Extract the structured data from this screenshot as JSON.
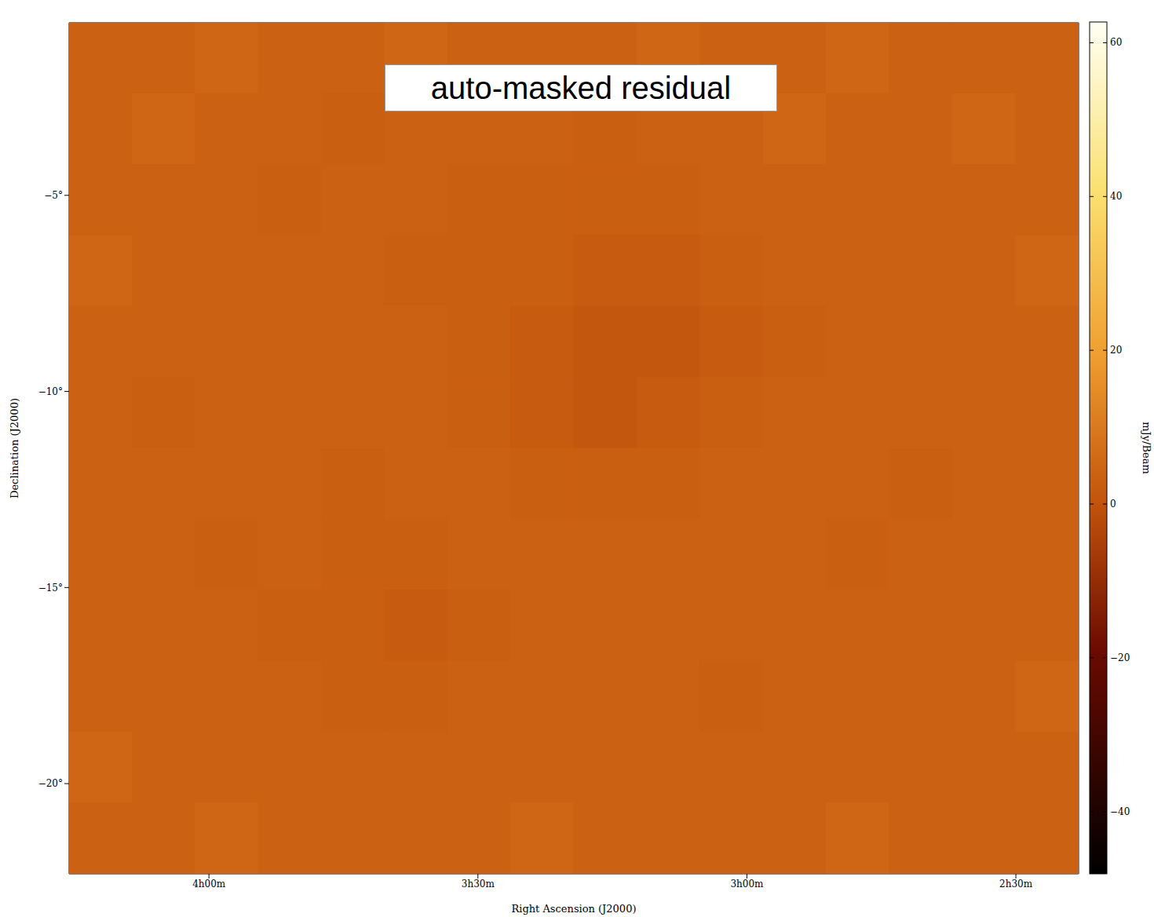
{
  "chart_data": {
    "type": "heatmap",
    "annotation": "auto-masked residual",
    "x_label": "Right Ascension (J2000)",
    "y_label": "Declination (J2000)",
    "xlim": [
      255.6,
      143
    ],
    "xticks": [
      {
        "value": 240,
        "label": "4h00m"
      },
      {
        "value": 210,
        "label": "3h30m"
      },
      {
        "value": 180,
        "label": "3h00m"
      },
      {
        "value": 150,
        "label": "2h30m"
      }
    ],
    "ylim": [
      -22.3,
      -0.6
    ],
    "yticks": [
      {
        "value": -5,
        "label": "−5°"
      },
      {
        "value": -10,
        "label": "−10°"
      },
      {
        "value": -15,
        "label": "−15°"
      },
      {
        "value": -20,
        "label": "−20°"
      }
    ],
    "grid": false,
    "cells": [
      [
        4,
        4,
        5,
        4,
        4,
        5,
        4,
        4,
        4,
        5,
        4,
        4,
        5,
        4,
        4,
        4
      ],
      [
        4,
        5,
        4,
        4,
        3,
        4,
        4,
        4,
        3,
        4,
        4,
        5,
        4,
        4,
        5,
        4
      ],
      [
        4,
        4,
        4,
        3,
        4,
        4,
        3,
        3,
        3,
        3,
        4,
        4,
        4,
        4,
        4,
        4
      ],
      [
        5,
        4,
        4,
        4,
        4,
        3,
        3,
        3,
        2,
        2,
        3,
        4,
        4,
        4,
        4,
        5
      ],
      [
        4,
        4,
        4,
        4,
        4,
        4,
        3,
        2,
        1,
        1,
        2,
        3,
        4,
        4,
        4,
        4
      ],
      [
        4,
        3,
        4,
        4,
        4,
        4,
        3,
        2,
        1,
        2,
        3,
        4,
        4,
        4,
        4,
        4
      ],
      [
        4,
        4,
        4,
        4,
        3,
        4,
        4,
        3,
        3,
        3,
        4,
        4,
        4,
        3,
        4,
        4
      ],
      [
        4,
        4,
        3,
        4,
        3,
        3,
        4,
        4,
        4,
        4,
        4,
        4,
        3,
        4,
        4,
        4
      ],
      [
        4,
        4,
        4,
        3,
        3,
        2,
        3,
        4,
        4,
        4,
        4,
        4,
        4,
        4,
        4,
        4
      ],
      [
        4,
        4,
        4,
        4,
        3,
        3,
        4,
        4,
        4,
        4,
        3,
        4,
        4,
        4,
        4,
        5
      ],
      [
        5,
        4,
        4,
        4,
        4,
        4,
        4,
        4,
        4,
        4,
        4,
        4,
        4,
        4,
        4,
        4
      ],
      [
        4,
        4,
        5,
        4,
        4,
        4,
        4,
        5,
        4,
        4,
        4,
        4,
        5,
        4,
        4,
        4
      ]
    ],
    "colorbar": {
      "range": [
        -48.1,
        62.7
      ],
      "ticks": [
        -40,
        -20,
        0,
        20,
        40,
        60
      ],
      "label": "mJy/Beam"
    }
  }
}
